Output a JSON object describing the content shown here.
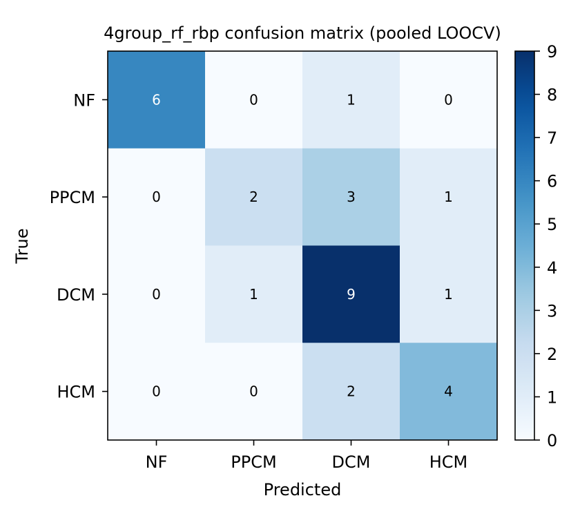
{
  "chart_data": {
    "type": "heatmap",
    "title": "4group_rf_rbp confusion matrix (pooled LOOCV)",
    "xlabel": "Predicted",
    "ylabel": "True",
    "x_categories": [
      "NF",
      "PPCM",
      "DCM",
      "HCM"
    ],
    "y_categories": [
      "NF",
      "PPCM",
      "DCM",
      "HCM"
    ],
    "values": [
      [
        6,
        0,
        1,
        0
      ],
      [
        0,
        2,
        3,
        1
      ],
      [
        0,
        1,
        9,
        1
      ],
      [
        0,
        0,
        2,
        4
      ]
    ],
    "colorscale": "Blues",
    "color_range": [
      0,
      9
    ],
    "colorbar_ticks": [
      "0",
      "1",
      "2",
      "3",
      "4",
      "5",
      "6",
      "7",
      "8",
      "9"
    ],
    "cell_text_light": "#ffffff",
    "cell_text_dark": "#000000"
  }
}
